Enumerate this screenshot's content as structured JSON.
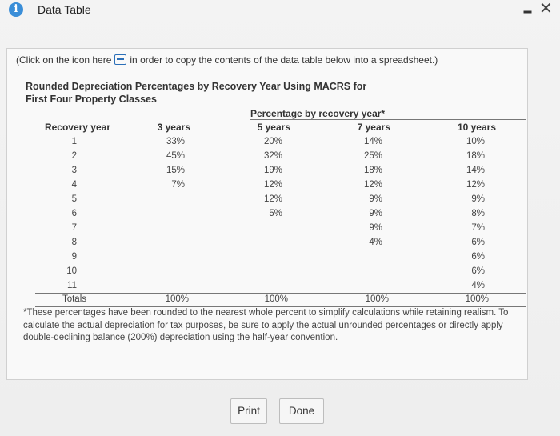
{
  "window": {
    "title": "Data Table"
  },
  "hint": {
    "before_icon": "(Click on the icon here",
    "after_icon": "in order to copy the contents of the data table below into a spreadsheet.)"
  },
  "heading": {
    "line1": "Rounded Depreciation Percentages by Recovery Year Using MACRS for",
    "line2": "First Four Property Classes"
  },
  "table": {
    "group_header": "Percentage by recovery year*",
    "columns": [
      "Recovery year",
      "3 years",
      "5 years",
      "7 years",
      "10 years"
    ],
    "rows": [
      [
        "1",
        "33%",
        "20%",
        "14%",
        "10%"
      ],
      [
        "2",
        "45%",
        "32%",
        "25%",
        "18%"
      ],
      [
        "3",
        "15%",
        "19%",
        "18%",
        "14%"
      ],
      [
        "4",
        "7%",
        "12%",
        "12%",
        "12%"
      ],
      [
        "5",
        "",
        "12%",
        "9%",
        "9%"
      ],
      [
        "6",
        "",
        "5%",
        "9%",
        "8%"
      ],
      [
        "7",
        "",
        "",
        "9%",
        "7%"
      ],
      [
        "8",
        "",
        "",
        "4%",
        "6%"
      ],
      [
        "9",
        "",
        "",
        "",
        "6%"
      ],
      [
        "10",
        "",
        "",
        "",
        "6%"
      ],
      [
        "11",
        "",
        "",
        "",
        "4%"
      ]
    ],
    "totals": [
      "Totals",
      "100%",
      "100%",
      "100%",
      "100%"
    ]
  },
  "footnote": "*These percentages have been rounded to the nearest whole percent to simplify calculations while retaining realism. To calculate the actual depreciation for tax purposes, be sure to apply the actual unrounded percentages or directly apply double-declining balance (200%) depreciation using the half-year convention.",
  "buttons": {
    "print": "Print",
    "done": "Done"
  }
}
